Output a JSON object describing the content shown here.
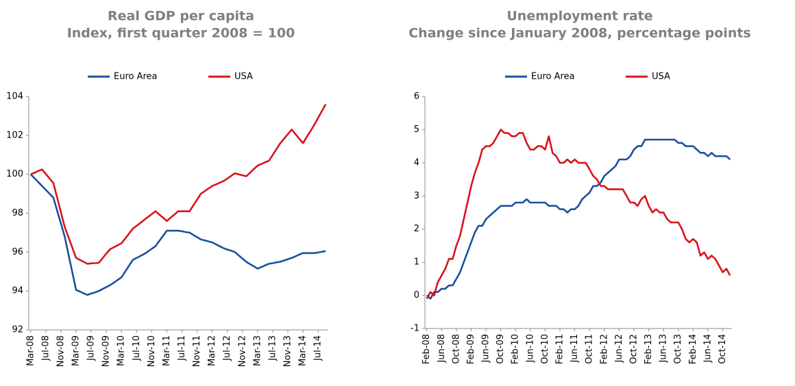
{
  "chart_data": [
    {
      "type": "line",
      "title": "Real GDP per capita",
      "subtitle": "Index, first quarter 2008 = 100",
      "legend": "top",
      "categories": [
        "Mar-08",
        null,
        null,
        null,
        "Jul-08",
        null,
        null,
        null,
        "Nov-08",
        null,
        null,
        null,
        "Mar-09",
        null,
        null,
        null,
        "Jul-09",
        null,
        null,
        null,
        "Nov-09",
        null,
        null,
        null,
        "Mar-10",
        null,
        null,
        null,
        "Jul-10",
        null,
        null,
        null,
        "Nov-10",
        null,
        null,
        null,
        "Mar-11",
        null,
        null,
        null,
        "Jul-11",
        null,
        null,
        null,
        "Nov-11",
        null,
        null,
        null,
        "Mar-12",
        null,
        null,
        null,
        "Jul-12",
        null,
        null,
        null,
        "Nov-12",
        null,
        null,
        null,
        "Mar-13",
        null,
        null,
        null,
        "Jul-13",
        null,
        null,
        null,
        "Nov-13",
        null,
        null,
        null,
        "Mar-14",
        null,
        null,
        null,
        "Jul-14",
        null,
        null
      ],
      "series": [
        {
          "name": "Euro Area",
          "color": "#1c4f9c",
          "values": [
            100,
            99.8,
            99.6,
            99.4,
            99.2,
            99.0,
            98.8,
            98.13,
            97.47,
            96.8,
            95.88,
            94.97,
            94.05,
            93.97,
            93.88,
            93.8,
            93.87,
            93.93,
            94.0,
            94.1,
            94.2,
            94.3,
            94.43,
            94.57,
            94.7,
            95.0,
            95.3,
            95.6,
            95.7,
            95.8,
            95.9,
            96.03,
            96.17,
            96.3,
            96.57,
            96.83,
            97.1,
            97.1,
            97.1,
            97.1,
            97.07,
            97.03,
            97.0,
            96.88,
            96.77,
            96.65,
            96.6,
            96.55,
            96.5,
            96.4,
            96.3,
            96.2,
            96.13,
            96.07,
            96.0,
            95.83,
            95.67,
            95.5,
            95.38,
            95.27,
            95.15,
            95.23,
            95.32,
            95.4,
            95.43,
            95.47,
            95.5,
            95.57,
            95.63,
            95.7,
            95.78,
            95.87,
            95.95,
            95.95,
            95.95,
            95.95,
            95.98,
            96.02,
            96.05
          ]
        },
        {
          "name": "USA",
          "color": "#d9131b",
          "values": [
            100,
            100.08,
            100.17,
            100.25,
            100.02,
            99.78,
            99.55,
            98.8,
            98.05,
            97.3,
            96.77,
            96.23,
            95.7,
            95.6,
            95.5,
            95.4,
            95.42,
            95.43,
            95.45,
            95.68,
            95.92,
            96.15,
            96.25,
            96.35,
            96.45,
            96.7,
            96.95,
            97.2,
            97.35,
            97.5,
            97.65,
            97.8,
            97.95,
            98.1,
            97.93,
            97.77,
            97.6,
            97.77,
            97.93,
            98.1,
            98.1,
            98.1,
            98.1,
            98.4,
            98.7,
            99.0,
            99.13,
            99.27,
            99.4,
            99.48,
            99.57,
            99.65,
            99.78,
            99.92,
            100.05,
            100.0,
            99.95,
            99.9,
            100.08,
            100.27,
            100.45,
            100.53,
            100.62,
            100.7,
            101.0,
            101.3,
            101.6,
            101.83,
            102.07,
            102.3,
            102.07,
            101.83,
            101.6,
            101.92,
            102.23,
            102.55,
            102.9,
            103.25,
            103.6
          ]
        }
      ],
      "ylim": [
        92,
        104
      ],
      "yticks": [
        92,
        94,
        96,
        98,
        100,
        102,
        104
      ]
    },
    {
      "type": "line",
      "title": "Unemployment rate",
      "subtitle": "Change since January 2008, percentage points",
      "legend": "top",
      "categories": [
        "Feb-08",
        null,
        null,
        null,
        "Jun-08",
        null,
        null,
        null,
        "Oct-08",
        null,
        null,
        null,
        "Feb-09",
        null,
        null,
        null,
        "Jun-09",
        null,
        null,
        null,
        "Oct-09",
        null,
        null,
        null,
        "Feb-10",
        null,
        null,
        null,
        "Jun-10",
        null,
        null,
        null,
        "Oct-10",
        null,
        null,
        null,
        "Feb-11",
        null,
        null,
        null,
        "Jun-11",
        null,
        null,
        null,
        "Oct-11",
        null,
        null,
        null,
        "Feb-12",
        null,
        null,
        null,
        "Jun-12",
        null,
        null,
        null,
        "Oct-12",
        null,
        null,
        null,
        "Feb-13",
        null,
        null,
        null,
        "Jun-13",
        null,
        null,
        null,
        "Oct-13",
        null,
        null,
        null,
        "Feb-14",
        null,
        null,
        null,
        "Jun-14",
        null,
        null,
        null,
        "Oct-14",
        null,
        null
      ],
      "series": [
        {
          "name": "Euro Area",
          "color": "#1c4f9c",
          "values": [
            0.0,
            -0.1,
            0.1,
            0.1,
            0.2,
            0.2,
            0.3,
            0.3,
            0.5,
            0.7,
            1.0,
            1.3,
            1.6,
            1.9,
            2.1,
            2.1,
            2.3,
            2.4,
            2.5,
            2.6,
            2.7,
            2.7,
            2.7,
            2.7,
            2.8,
            2.8,
            2.8,
            2.9,
            2.8,
            2.8,
            2.8,
            2.8,
            2.8,
            2.7,
            2.7,
            2.7,
            2.6,
            2.6,
            2.5,
            2.6,
            2.6,
            2.7,
            2.9,
            3.0,
            3.1,
            3.3,
            3.3,
            3.4,
            3.6,
            3.7,
            3.8,
            3.9,
            4.1,
            4.1,
            4.1,
            4.2,
            4.4,
            4.5,
            4.5,
            4.7,
            4.7,
            4.7,
            4.7,
            4.7,
            4.7,
            4.7,
            4.7,
            4.7,
            4.6,
            4.6,
            4.5,
            4.5,
            4.5,
            4.4,
            4.3,
            4.3,
            4.2,
            4.3,
            4.2,
            4.2,
            4.2,
            4.2,
            4.1
          ]
        },
        {
          "name": "USA",
          "color": "#d9131b",
          "values": [
            -0.1,
            0.1,
            0.0,
            0.4,
            0.6,
            0.8,
            1.1,
            1.1,
            1.5,
            1.8,
            2.3,
            2.8,
            3.3,
            3.7,
            4.0,
            4.4,
            4.5,
            4.5,
            4.6,
            4.8,
            5.0,
            4.9,
            4.9,
            4.8,
            4.8,
            4.9,
            4.9,
            4.6,
            4.4,
            4.4,
            4.5,
            4.5,
            4.4,
            4.8,
            4.3,
            4.2,
            4.0,
            4.0,
            4.1,
            4.0,
            4.1,
            4.0,
            4.0,
            4.0,
            3.8,
            3.6,
            3.5,
            3.3,
            3.3,
            3.2,
            3.2,
            3.2,
            3.2,
            3.2,
            3.0,
            2.8,
            2.8,
            2.7,
            2.9,
            3.0,
            2.7,
            2.5,
            2.6,
            2.5,
            2.5,
            2.3,
            2.2,
            2.2,
            2.2,
            2.0,
            1.7,
            1.6,
            1.7,
            1.6,
            1.2,
            1.3,
            1.1,
            1.2,
            1.1,
            0.9,
            0.7,
            0.8,
            0.6
          ]
        }
      ],
      "ylim": [
        -1,
        6
      ],
      "yticks": [
        -1,
        0,
        1,
        2,
        3,
        4,
        5,
        6
      ]
    }
  ]
}
